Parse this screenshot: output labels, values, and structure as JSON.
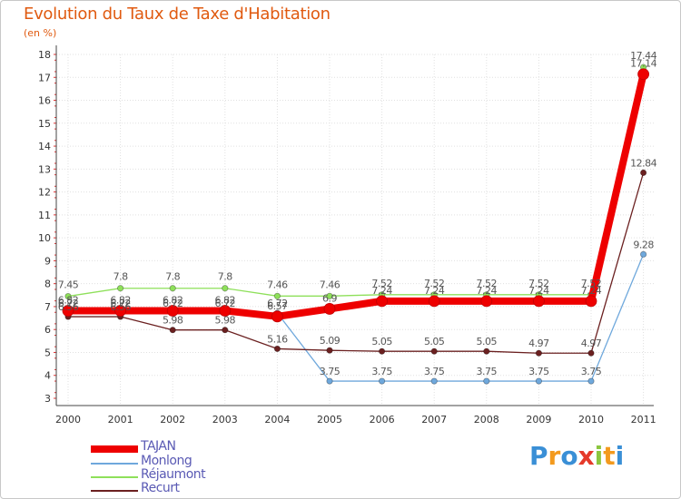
{
  "title": "Evolution du Taux de Taxe d'Habitation",
  "subtitle": "(en %)",
  "logo": {
    "letters": [
      "P",
      "r",
      "o",
      "x",
      "i",
      "t",
      "i"
    ],
    "colors": [
      "#3a8fd6",
      "#f39a1e",
      "#3a8fd6",
      "#e53a2a",
      "#8cc63f",
      "#f39a1e",
      "#3a8fd6"
    ]
  },
  "chart_data": {
    "type": "line",
    "title": "Evolution du Taux de Taxe d'Habitation",
    "ylabel": "(en %)",
    "xlabel": "",
    "ylim": [
      3,
      18
    ],
    "yticks": [
      "3",
      "4",
      "5",
      "6",
      "7",
      "8",
      "9",
      "10",
      "11",
      "12",
      "13",
      "14",
      "15",
      "16",
      "17",
      "18"
    ],
    "categories": [
      "2000",
      "2001",
      "2002",
      "2003",
      "2004",
      "2005",
      "2006",
      "2007",
      "2008",
      "2009",
      "2010",
      "2011"
    ],
    "series": [
      {
        "name": "Réjaumont",
        "color": "#8ee05a",
        "values": [
          7.45,
          7.8,
          7.8,
          7.8,
          7.46,
          7.46,
          7.52,
          7.52,
          7.52,
          7.52,
          7.52,
          17.44
        ],
        "labels": [
          "7.45",
          "7.8",
          "7.8",
          "7.8",
          "7.46",
          "7.46",
          "7.52",
          "7.52",
          "7.52",
          "7.52",
          "7.52",
          "17.44"
        ]
      },
      {
        "name": "Monlong",
        "color": "#6fa8dc",
        "values": [
          6.72,
          6.72,
          6.72,
          6.72,
          6.72,
          3.75,
          3.75,
          3.75,
          3.75,
          3.75,
          3.75,
          9.28
        ],
        "labels": [
          "6.72",
          "6.72",
          "6.72",
          "6.72",
          "6.72",
          "3.75",
          "3.75",
          "3.75",
          "3.75",
          "3.75",
          "3.75",
          "9.28"
        ]
      },
      {
        "name": "Recurt",
        "color": "#6b2020",
        "values": [
          6.56,
          6.56,
          5.98,
          5.98,
          5.16,
          5.09,
          5.05,
          5.05,
          5.05,
          4.97,
          4.97,
          12.84
        ],
        "labels": [
          "6.56",
          "6.56",
          "5.98",
          "5.98",
          "5.16",
          "5.09",
          "5.05",
          "5.05",
          "5.05",
          "4.97",
          "4.97",
          "12.84"
        ]
      },
      {
        "name": "TAJAN",
        "color": "#ee0000",
        "values": [
          6.82,
          6.82,
          6.82,
          6.82,
          6.57,
          6.9,
          7.24,
          7.24,
          7.24,
          7.24,
          7.24,
          17.14
        ],
        "labels": [
          "6.82",
          "6.82",
          "6.82",
          "6.82",
          "6.57",
          "6.9",
          "7.24",
          "7.24",
          "7.24",
          "7.24",
          "7.24",
          "17.14"
        ]
      }
    ],
    "legend": [
      "TAJAN",
      "Monlong",
      "Réjaumont",
      "Recurt"
    ],
    "legend_position": "bottom-left"
  }
}
